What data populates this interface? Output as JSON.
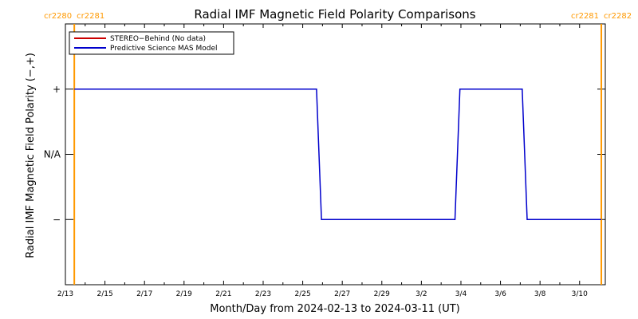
{
  "chart_data": {
    "type": "line",
    "title": "Radial IMF Magnetic Field Polarity Comparisons",
    "xlabel": "Month/Day from 2024-02-13 to 2024-03-11 (UT)",
    "ylabel": "Radial IMF Magnetic Field Polarity (−,+)",
    "x_range_days": [
      0,
      27.3
    ],
    "x_ticks": [
      {
        "day": 0,
        "label": "2/13"
      },
      {
        "day": 2,
        "label": "2/15"
      },
      {
        "day": 4,
        "label": "2/17"
      },
      {
        "day": 6,
        "label": "2/19"
      },
      {
        "day": 8,
        "label": "2/21"
      },
      {
        "day": 10,
        "label": "2/23"
      },
      {
        "day": 12,
        "label": "2/25"
      },
      {
        "day": 14,
        "label": "2/27"
      },
      {
        "day": 16,
        "label": "2/29"
      },
      {
        "day": 18,
        "label": "3/2"
      },
      {
        "day": 20,
        "label": "3/4"
      },
      {
        "day": 22,
        "label": "3/6"
      },
      {
        "day": 24,
        "label": "3/8"
      },
      {
        "day": 26,
        "label": "3/10"
      }
    ],
    "y_range": [
      -2,
      2
    ],
    "y_ticks": [
      {
        "value": 1,
        "label": "+"
      },
      {
        "value": 0,
        "label": "N/A"
      },
      {
        "value": -1,
        "label": "−"
      }
    ],
    "carrington_markers": [
      {
        "day": 0.45,
        "label_left": "cr2280",
        "label_right": "cr2281",
        "color": "#ff9900"
      },
      {
        "day": 27.1,
        "label_left": "cr2281",
        "label_right": "cr2282",
        "color": "#ff9900"
      }
    ],
    "legend_position": "top-left",
    "series": [
      {
        "name": "STEREO−Behind (No data)",
        "color": "#cc0000",
        "x": [],
        "y": []
      },
      {
        "name": "Predictive Science MAS Model",
        "color": "#0000cc",
        "x": [
          0.45,
          12.7,
          12.95,
          19.7,
          19.95,
          23.1,
          23.35,
          27.1
        ],
        "y": [
          1,
          1,
          -1,
          -1,
          1,
          1,
          -1,
          -1
        ]
      }
    ]
  }
}
